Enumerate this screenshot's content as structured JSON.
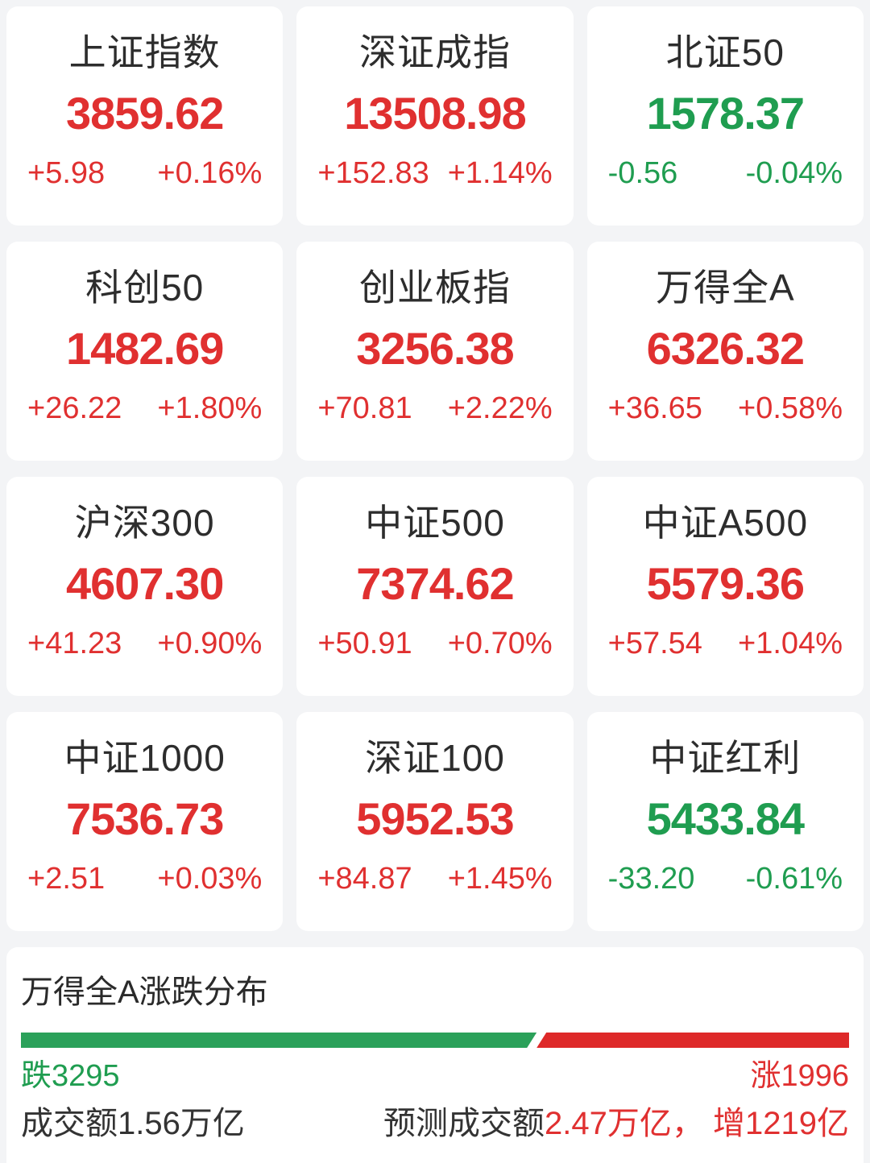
{
  "colors": {
    "up": "#e03030",
    "down": "#1f9d50",
    "bar_red": "#de2929",
    "bar_green": "#2ba15a",
    "title": "#2d2d2d",
    "dark": "#333333"
  },
  "indices": [
    {
      "name": "上证指数",
      "value": "3859.62",
      "change": "+5.98",
      "change_pct": "+0.16%",
      "direction": "up"
    },
    {
      "name": "深证成指",
      "value": "13508.98",
      "change": "+152.83",
      "change_pct": "+1.14%",
      "direction": "up"
    },
    {
      "name": "北证50",
      "value": "1578.37",
      "change": "-0.56",
      "change_pct": "-0.04%",
      "direction": "down"
    },
    {
      "name": "科创50",
      "value": "1482.69",
      "change": "+26.22",
      "change_pct": "+1.80%",
      "direction": "up"
    },
    {
      "name": "创业板指",
      "value": "3256.38",
      "change": "+70.81",
      "change_pct": "+2.22%",
      "direction": "up"
    },
    {
      "name": "万得全A",
      "value": "6326.32",
      "change": "+36.65",
      "change_pct": "+0.58%",
      "direction": "up"
    },
    {
      "name": "沪深300",
      "value": "4607.30",
      "change": "+41.23",
      "change_pct": "+0.90%",
      "direction": "up"
    },
    {
      "name": "中证500",
      "value": "7374.62",
      "change": "+50.91",
      "change_pct": "+0.70%",
      "direction": "up"
    },
    {
      "name": "中证A500",
      "value": "5579.36",
      "change": "+57.54",
      "change_pct": "+1.04%",
      "direction": "up"
    },
    {
      "name": "中证1000",
      "value": "7536.73",
      "change": "+2.51",
      "change_pct": "+0.03%",
      "direction": "up"
    },
    {
      "name": "深证100",
      "value": "5952.53",
      "change": "+84.87",
      "change_pct": "+1.45%",
      "direction": "up"
    },
    {
      "name": "中证红利",
      "value": "5433.84",
      "change": "-33.20",
      "change_pct": "-0.61%",
      "direction": "down"
    }
  ],
  "distribution": {
    "title": "万得全A涨跌分布",
    "down_count": 3295,
    "up_count": 1996,
    "down_label": "跌3295",
    "up_label": "涨1996",
    "turnover_label": "成交额1.56万亿",
    "forecast_prefix": "预测成交额",
    "forecast_highlight": "2.47万亿， 增1219亿"
  }
}
